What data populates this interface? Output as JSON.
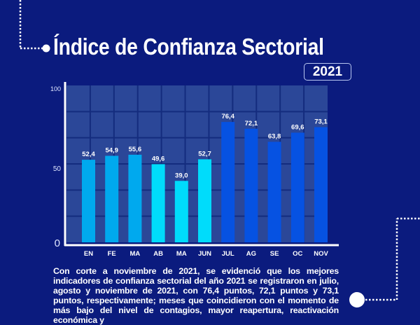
{
  "title": "Índice de Confianza Sectorial",
  "year_badge": "2021",
  "paragraph": "Con corte a noviembre de 2021, se evidenció que los mejores indicadores de confianza sectorial del año 2021 se registraron en julio, agosto y noviembre de 2021, con 76,4 puntos, 72,1 puntos y 73,1 puntos, respectivamente; meses que coincidieron con el momento de más bajo del nivel de contagios, mayor reapertura, reactivación económica y",
  "chart_data": {
    "type": "bar",
    "categories": [
      "EN",
      "FE",
      "MA",
      "AB",
      "MA",
      "JUN",
      "JUL",
      "AG",
      "SE",
      "OC",
      "NOV"
    ],
    "values": [
      52.4,
      54.9,
      55.6,
      49.6,
      39.0,
      52.7,
      76.4,
      72.1,
      63.8,
      69.6,
      73.1
    ],
    "data_labels": [
      "52,4",
      "54,9",
      "55,6",
      "49,6",
      "39,0",
      "52,7",
      "76,4",
      "72,1",
      "63,8",
      "69,6",
      "73,1"
    ],
    "colors": [
      "#00a9ee",
      "#00a9ee",
      "#00a9ee",
      "#00dcfb",
      "#00dcfb",
      "#00dcfb",
      "#0652e2",
      "#0652e2",
      "#0652e2",
      "#0652e2",
      "#0652e2"
    ],
    "yticks": [
      "0",
      "50",
      "100"
    ],
    "ylim": [
      0,
      100
    ],
    "grid": true,
    "title": "",
    "xlabel": "",
    "ylabel": ""
  },
  "colors": {
    "background": "#0b1b7e",
    "plot_background": "#2b4798",
    "grid": "#142c7e"
  }
}
